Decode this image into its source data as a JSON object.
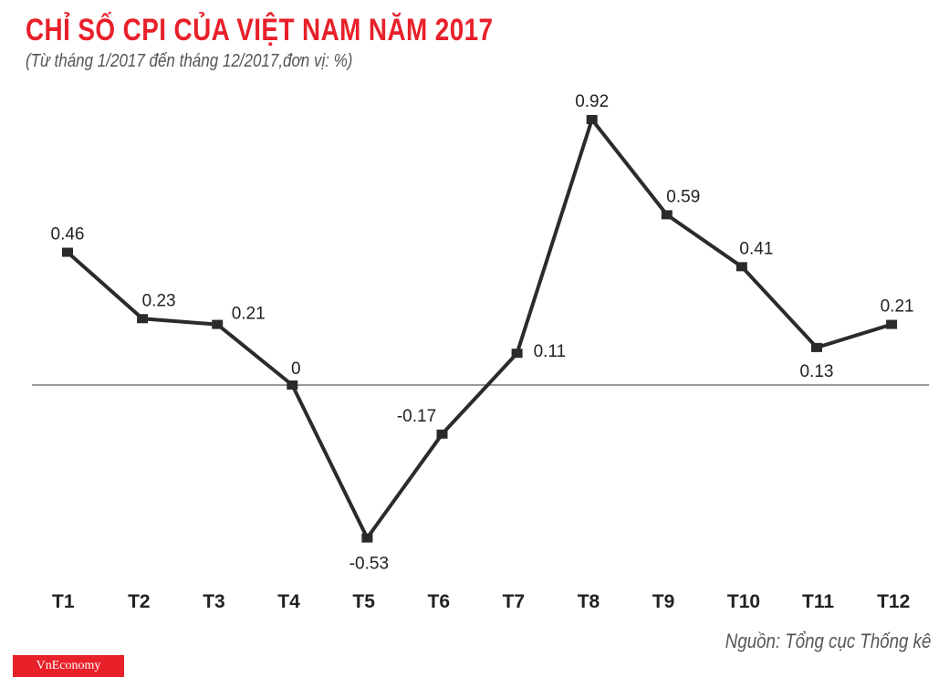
{
  "title": "CHỈ SỐ CPI CỦA VIỆT NAM NĂM 2017",
  "subtitle": "(Từ tháng 1/2017 đến tháng 12/2017,đơn vị: %)",
  "source": "Nguồn: Tổng cục Thống kê",
  "logo": "VnEconomy",
  "chart_data": {
    "type": "line",
    "title": "CHỈ SỐ CPI CỦA VIỆT NAM NĂM 2017",
    "subtitle": "(Từ tháng 1/2017 đến tháng 12/2017,đơn vị: %)",
    "categories": [
      "T1",
      "T2",
      "T3",
      "T4",
      "T5",
      "T6",
      "T7",
      "T8",
      "T9",
      "T10",
      "T11",
      "T12"
    ],
    "values": [
      0.46,
      0.23,
      0.21,
      0,
      -0.53,
      -0.17,
      0.11,
      0.92,
      0.59,
      0.41,
      0.13,
      0.21
    ],
    "labels": [
      "0.46",
      "0.23",
      "0.21",
      "0",
      "-0.53",
      "-0.17",
      "0.11",
      "0.92",
      "0.59",
      "0.41",
      "0.13",
      "0.21"
    ],
    "ylim": [
      -0.6,
      1.0
    ],
    "grid": false,
    "zero_line": true,
    "line_color": "#2b2b2b",
    "title_color": "#e8202a"
  }
}
